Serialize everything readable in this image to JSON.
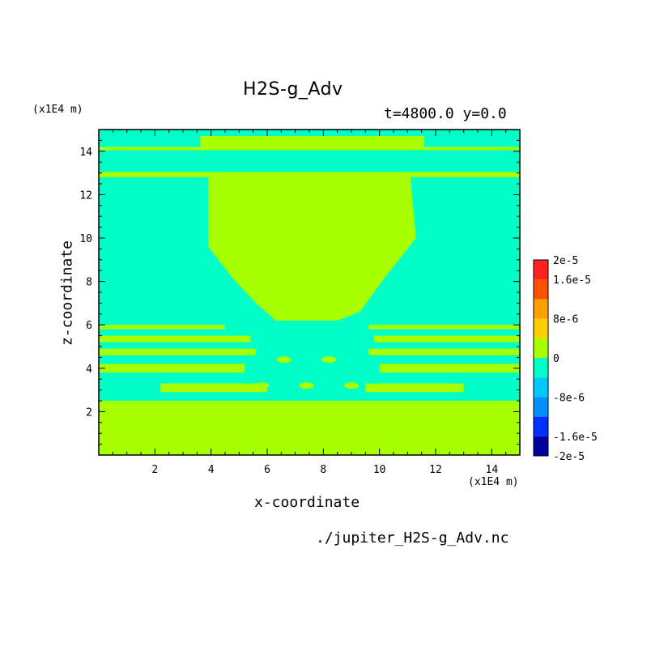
{
  "chart_data": {
    "type": "heatmap",
    "title": "H2S-g_Adv",
    "time_label": "t=4800.0 y=0.0",
    "xlabel": "x-coordinate",
    "ylabel": "z-coordinate",
    "x_unit": "(x1E4 m)",
    "z_unit": "(x1E4 m)",
    "xlim": [
      0,
      15
    ],
    "ylim": [
      0,
      15
    ],
    "x_ticks": [
      "2",
      "4",
      "6",
      "8",
      "10",
      "12",
      "14"
    ],
    "y_ticks": [
      "2",
      "4",
      "6",
      "8",
      "10",
      "12",
      "14"
    ],
    "filename": "./jupiter_H2S-g_Adv.nc",
    "colorbar": {
      "labels": [
        "2e-5",
        "1.6e-5",
        "8e-6",
        "0",
        "-8e-6",
        "-1.6e-5",
        "-2e-5"
      ],
      "levels": [
        -2e-05,
        -1.6e-05,
        -1.2e-05,
        -8e-06,
        -4e-06,
        0,
        4e-06,
        8e-06,
        1.2e-05,
        1.6e-05,
        2e-05
      ],
      "colors": [
        "#0000a0",
        "#0030ff",
        "#0090ff",
        "#00c8ff",
        "#00ffc8",
        "#a8ff00",
        "#ffd000",
        "#ffa000",
        "#ff5000",
        "#ff2020"
      ]
    },
    "dominant_fields": {
      "positive_small": "#a8ff00",
      "negative_small": "#00ffc8"
    }
  }
}
